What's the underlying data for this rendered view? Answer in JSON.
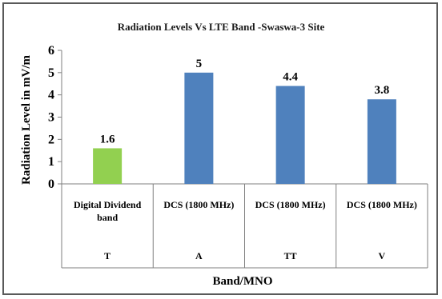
{
  "chart_data": {
    "type": "bar",
    "title": "Radiation  Levels Vs LTE Band -Swaswa-3 Site",
    "categories": [
      "Digital Dividend band",
      "DCS (1800 MHz)",
      "DCS (1800 MHz)",
      "DCS (1800 MHz)"
    ],
    "groups": [
      "T",
      "A",
      "TT",
      "V"
    ],
    "values": [
      1.6,
      5,
      4.4,
      3.8
    ],
    "data_labels": [
      "1.6",
      "5",
      "4.4",
      "3.8"
    ],
    "colors": [
      "#92d050",
      "#4f81bd",
      "#4f81bd",
      "#4f81bd"
    ],
    "xlabel": "Band/MNO",
    "ylabel": "Radiation Level in mV/m",
    "ylim": [
      0,
      6
    ],
    "yticks": [
      "0",
      "1",
      "2",
      "3",
      "4",
      "5",
      "6"
    ],
    "grid": false,
    "legend": "none"
  }
}
